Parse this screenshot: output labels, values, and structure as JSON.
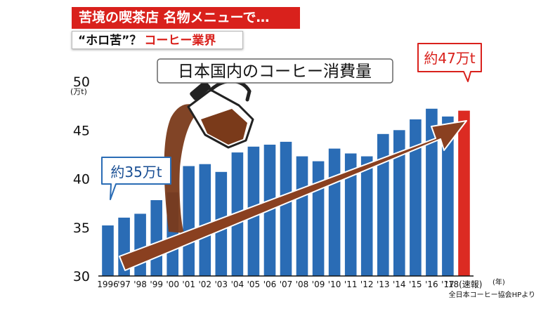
{
  "header": {
    "headline": "苦境の喫茶店 名物メニューで…",
    "subhead_quote": "“ホロ苦”？",
    "subhead_topic": "コーヒー業界"
  },
  "source_note": "全日本コーヒー協会HPより",
  "colors": {
    "bar": "#2a6cb5",
    "bar_highlight": "#dc2b22",
    "banner": "#d9211c",
    "arrow": "#8a4020",
    "coffee": "#7a3a1a"
  },
  "chart_data": {
    "type": "bar",
    "title": "日本国内のコーヒー消費量",
    "ylabel": "(万t)",
    "xlabel": "(年)",
    "ylim": [
      30,
      50
    ],
    "yticks": [
      30,
      35,
      40,
      45,
      50
    ],
    "categories": [
      "1996",
      "'97",
      "'98",
      "'99",
      "'00",
      "'01",
      "'02",
      "'03",
      "'04",
      "'05",
      "'06",
      "'07",
      "'08",
      "'09",
      "'10",
      "'11",
      "'12",
      "'13",
      "'14",
      "'15",
      "'16",
      "'17",
      "'18(速報)"
    ],
    "values": [
      35.2,
      36.0,
      36.4,
      37.8,
      38.6,
      41.3,
      41.5,
      40.7,
      42.7,
      43.3,
      43.5,
      43.8,
      42.3,
      41.8,
      43.1,
      42.6,
      42.3,
      44.6,
      45.0,
      46.1,
      47.2,
      46.4,
      47.0
    ],
    "highlight_index": 22,
    "annotations": {
      "start": "約35万t",
      "end": "約47万t"
    },
    "grid": false,
    "legend": "none"
  }
}
